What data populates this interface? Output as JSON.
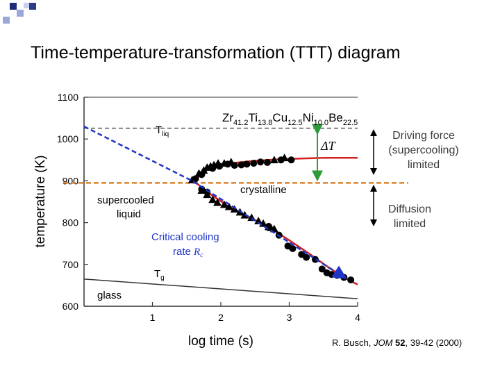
{
  "slide": {
    "title": "Time-temperature-transformation (TTT) diagram",
    "citation": {
      "author": "R. Busch, ",
      "journal": "JOM",
      "volume": "52",
      "pages": ", 39-42 (2000)"
    },
    "annotations": {
      "driving_force": [
        "Driving force",
        "(supercooling)",
        "limited"
      ],
      "diffusion": [
        "Diffusion",
        "limited"
      ],
      "critical_cooling": [
        "Critical cooling",
        "rate "
      ],
      "critical_cooling_symbol": "R",
      "critical_cooling_subscript": "c",
      "delta_t_symbol": "ΔT"
    }
  },
  "chart_data": {
    "type": "scatter",
    "xlabel": "log time (s)",
    "ylabel": "temperature (K)",
    "xlim": [
      0.0,
      4.0
    ],
    "ylim": [
      600,
      1100
    ],
    "x_ticks": [
      "1",
      "2",
      "3",
      "4"
    ],
    "y_ticks": [
      "600",
      "700",
      "800",
      "900",
      "1000",
      "1100"
    ],
    "alloy": {
      "segments": [
        {
          "base": "Zr",
          "sub": "41.2"
        },
        {
          "base": "Ti",
          "sub": "13.8"
        },
        {
          "base": "Cu",
          "sub": "12.5"
        },
        {
          "base": "Ni",
          "sub": "10.0"
        },
        {
          "base": "Be",
          "sub": "22.5"
        }
      ]
    },
    "region_labels": {
      "crystalline": "crystalline",
      "supercooled": [
        "supercooled",
        "liquid"
      ],
      "glass": "glass",
      "tliq": "T",
      "tliq_sub": "liq",
      "tg": "T",
      "tg_sub": "g"
    },
    "liquidus_temperature": 1026,
    "nose_temperature": 895,
    "colors": {
      "fit_curve": "#d42020",
      "cooling_line": "#1f35c8",
      "nose_line": "#d9822b",
      "delta_t_arrow": "#2e9a3a",
      "data_marker": "#000000",
      "axis": "#333333"
    },
    "series": [
      {
        "name": "upper branch (triangles)",
        "marker": "triangle",
        "points": [
          [
            1.58,
            902
          ],
          [
            1.68,
            918
          ],
          [
            1.75,
            925
          ],
          [
            1.8,
            932
          ],
          [
            1.85,
            935
          ],
          [
            1.9,
            938
          ],
          [
            1.96,
            942
          ],
          [
            2.05,
            942
          ],
          [
            2.15,
            945
          ],
          [
            2.78,
            950
          ],
          [
            2.93,
            955
          ]
        ]
      },
      {
        "name": "upper branch (circles)",
        "marker": "circle",
        "points": [
          [
            1.63,
            905
          ],
          [
            1.72,
            915
          ],
          [
            1.88,
            930
          ],
          [
            1.98,
            935
          ],
          [
            2.1,
            940
          ],
          [
            2.2,
            937
          ],
          [
            2.3,
            938
          ],
          [
            2.38,
            940
          ],
          [
            2.48,
            942
          ],
          [
            2.58,
            945
          ],
          [
            2.68,
            944
          ],
          [
            2.88,
            950
          ],
          [
            3.03,
            950
          ]
        ]
      },
      {
        "name": "lower branch (triangles)",
        "marker": "triangle",
        "points": [
          [
            1.72,
            877
          ],
          [
            1.8,
            867
          ],
          [
            1.88,
            855
          ],
          [
            1.95,
            848
          ],
          [
            2.05,
            843
          ],
          [
            2.12,
            838
          ],
          [
            2.2,
            832
          ],
          [
            2.28,
            825
          ],
          [
            2.35,
            818
          ],
          [
            2.45,
            812
          ],
          [
            2.55,
            804
          ],
          [
            2.62,
            798
          ],
          [
            2.7,
            790
          ],
          [
            2.73,
            788
          ],
          [
            2.78,
            785
          ]
        ]
      },
      {
        "name": "lower branch (circles)",
        "marker": "circle",
        "points": [
          [
            1.72,
            880
          ],
          [
            1.8,
            873
          ],
          [
            2.7,
            791
          ],
          [
            2.85,
            770
          ],
          [
            2.98,
            744
          ],
          [
            3.05,
            738
          ],
          [
            3.18,
            724
          ],
          [
            3.25,
            717
          ],
          [
            3.38,
            712
          ],
          [
            3.48,
            689
          ],
          [
            3.55,
            680
          ],
          [
            3.62,
            676
          ],
          [
            3.7,
            674
          ],
          [
            3.8,
            669
          ],
          [
            3.9,
            663
          ]
        ]
      },
      {
        "name": "fit curve upper",
        "marker": "line",
        "points": [
          [
            1.6,
            900
          ],
          [
            1.8,
            926
          ],
          [
            2.0,
            937
          ],
          [
            2.2,
            943
          ],
          [
            2.5,
            948
          ],
          [
            2.8,
            951
          ],
          [
            3.1,
            953
          ],
          [
            3.5,
            955
          ],
          [
            4.0,
            955
          ]
        ]
      },
      {
        "name": "fit curve lower",
        "marker": "line",
        "points": [
          [
            1.6,
            900
          ],
          [
            1.85,
            868
          ],
          [
            2.1,
            840
          ],
          [
            2.4,
            815
          ],
          [
            2.7,
            789
          ],
          [
            3.0,
            758
          ],
          [
            3.3,
            725
          ],
          [
            3.6,
            690
          ],
          [
            3.8,
            670
          ],
          [
            3.95,
            656
          ],
          [
            4.0,
            652
          ]
        ]
      },
      {
        "name": "critical cooling line",
        "marker": "dashed-line",
        "points": [
          [
            0.0,
            1030
          ],
          [
            1.58,
            900
          ],
          [
            3.8,
            670
          ]
        ]
      },
      {
        "name": "glass transition line",
        "marker": "line",
        "points": [
          [
            0.0,
            665
          ],
          [
            4.0,
            618
          ]
        ]
      }
    ]
  }
}
